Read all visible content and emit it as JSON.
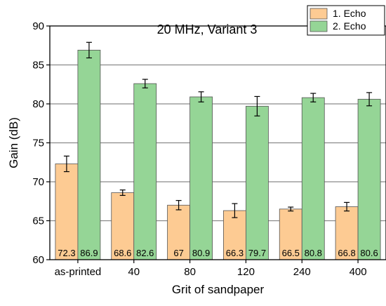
{
  "chart_data": {
    "type": "bar",
    "title": "20 MHz, Variant 3",
    "xlabel": "Grit of sandpaper",
    "ylabel": "Gain (dB)",
    "ylim": [
      60,
      90
    ],
    "yticks": [
      60,
      65,
      70,
      75,
      80,
      85,
      90
    ],
    "grid": true,
    "legend_position": "top-right",
    "categories": [
      "as-printed",
      "40",
      "80",
      "120",
      "240",
      "400"
    ],
    "series": [
      {
        "name": "1. Echo",
        "color": "#FDCB93",
        "values": [
          72.3,
          68.6,
          67,
          66.3,
          66.5,
          66.8
        ],
        "value_labels": [
          "72.3",
          "68.6",
          "67",
          "66.3",
          "66.5",
          "66.8"
        ],
        "errors": [
          1.0,
          0.35,
          0.6,
          0.9,
          0.25,
          0.55
        ]
      },
      {
        "name": "2. Echo",
        "color": "#95D596",
        "values": [
          86.9,
          82.6,
          80.9,
          79.7,
          80.8,
          80.6
        ],
        "value_labels": [
          "86.9",
          "82.6",
          "80.9",
          "79.7",
          "80.8",
          "80.6"
        ],
        "errors": [
          1.0,
          0.55,
          0.65,
          1.25,
          0.55,
          0.85
        ]
      }
    ]
  }
}
